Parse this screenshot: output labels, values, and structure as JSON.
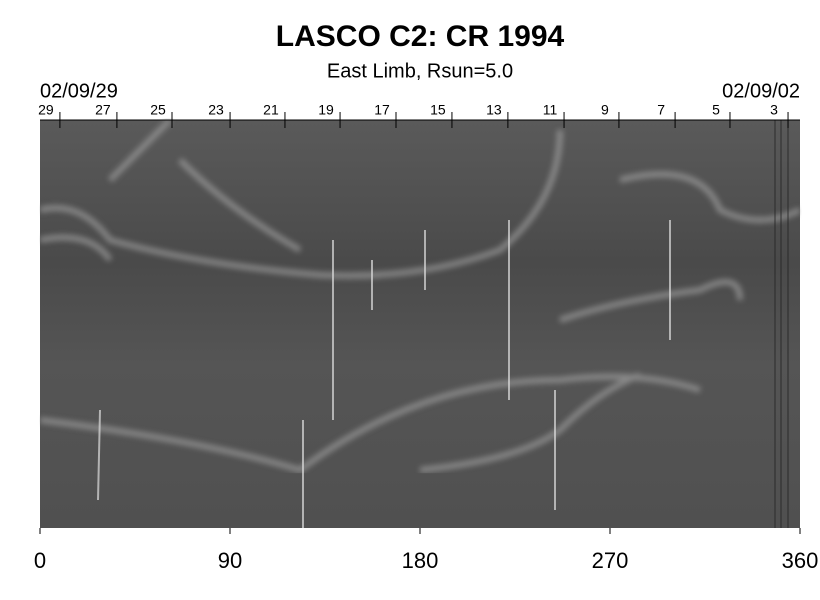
{
  "chart_data": {
    "type": "image",
    "title": "LASCO C2: CR 1994",
    "subtitle": "East Limb, Rsun=5.0",
    "start_date": "02/09/29",
    "end_date": "02/09/02",
    "xlim": [
      0,
      360
    ],
    "xticks": [
      0,
      90,
      180,
      270,
      360
    ],
    "top_ticks": [
      {
        "value": 2.8,
        "label": "29"
      },
      {
        "value": 29.8,
        "label": "27"
      },
      {
        "value": 55.9,
        "label": "25"
      },
      {
        "value": 83.4,
        "label": "23"
      },
      {
        "value": 109.4,
        "label": "21"
      },
      {
        "value": 135.5,
        "label": "19"
      },
      {
        "value": 162,
        "label": "17"
      },
      {
        "value": 188.5,
        "label": "15"
      },
      {
        "value": 215,
        "label": "13"
      },
      {
        "value": 241.6,
        "label": "11"
      },
      {
        "value": 267.6,
        "label": "9"
      },
      {
        "value": 294.2,
        "label": "7"
      },
      {
        "value": 320.2,
        "label": "5"
      },
      {
        "value": 347.7,
        "label": "3"
      }
    ]
  }
}
